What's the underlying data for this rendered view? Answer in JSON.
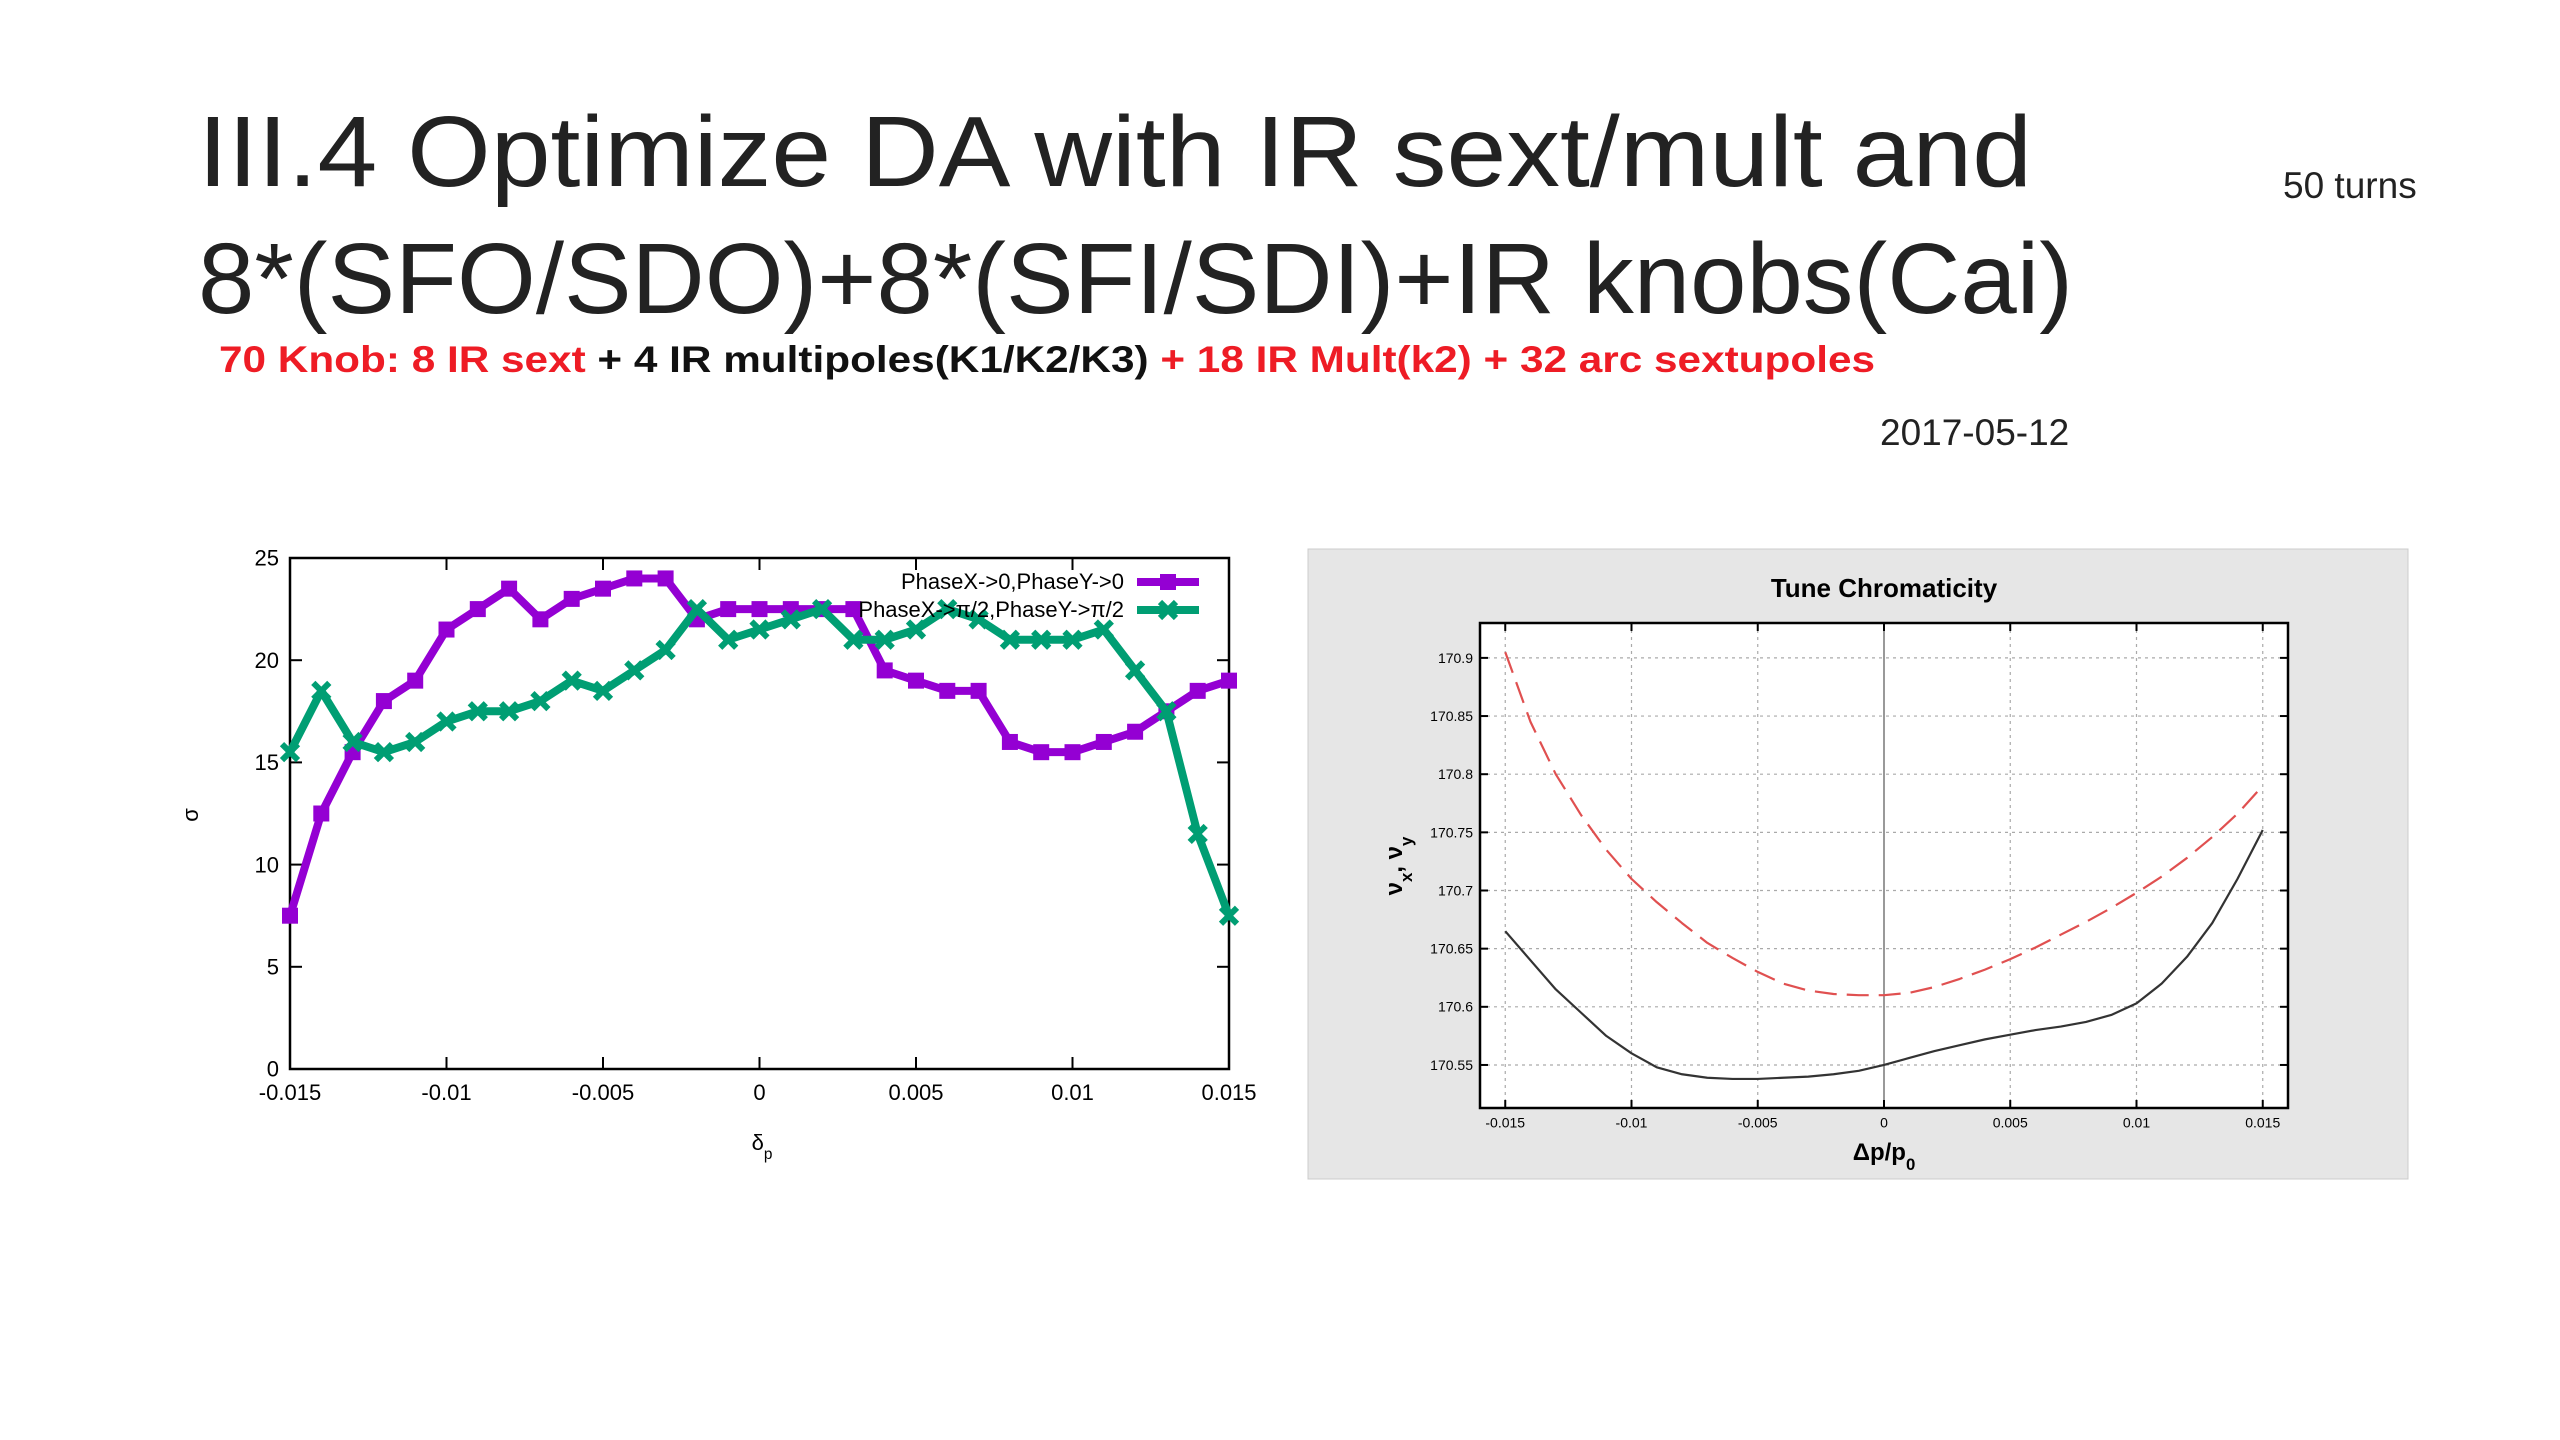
{
  "slide": {
    "title_lines": [
      "III.4 Optimize DA with IR sext/mult and",
      "8*(SFO/SDO)+8*(SFI/SDI)+IR knobs(Cai)"
    ],
    "note": "50 turns",
    "subtitle": [
      {
        "text": "70 Knob: 8 IR sext",
        "color": "#ee1c25"
      },
      {
        "text": " + 4 IR multipoles(K1/K2/K3)",
        "color": "#111111"
      },
      {
        "text": " + 18 IR Mult(k2) + 32 arc sextupoles",
        "color": "#ee1c25"
      }
    ],
    "date": "2017-05-12"
  },
  "chart_data": [
    {
      "type": "line",
      "xlabel": [
        {
          "text": "δ"
        },
        {
          "text": "p",
          "sub": true
        }
      ],
      "ylabel": [
        {
          "text": "σ"
        }
      ],
      "x": [
        -0.015,
        -0.014,
        -0.013,
        -0.012,
        -0.011,
        -0.01,
        -0.009,
        -0.008,
        -0.007,
        -0.006,
        -0.005,
        -0.004,
        -0.003,
        -0.002,
        -0.001,
        0,
        0.001,
        0.002,
        0.003,
        0.004,
        0.005,
        0.006,
        0.007,
        0.008,
        0.009,
        0.01,
        0.011,
        0.012,
        0.013,
        0.014,
        0.015
      ],
      "series": [
        {
          "name": "PhaseX->0,PhaseY->0",
          "color": "#9400d3",
          "marker": "square",
          "values": [
            7.5,
            12.5,
            15.5,
            18,
            19,
            21.5,
            22.5,
            23.5,
            22,
            23,
            23.5,
            24,
            24,
            22,
            22.5,
            22.5,
            22.5,
            22.5,
            22.5,
            19.5,
            19,
            18.5,
            18.5,
            16,
            15.5,
            15.5,
            16,
            16.5,
            17.5,
            18.5,
            19
          ]
        },
        {
          "name": "PhaseX->π/2,PhaseY->π/2",
          "color": "#009e73",
          "marker": "cross",
          "values": [
            15.5,
            18.5,
            16,
            15.5,
            16,
            17,
            17.5,
            17.5,
            18,
            19,
            18.5,
            19.5,
            20.5,
            22.5,
            21,
            21.5,
            22,
            22.5,
            21,
            21,
            21.5,
            22.5,
            22,
            21,
            21,
            21,
            21.5,
            19.5,
            17.5,
            11.5,
            7.5
          ]
        }
      ],
      "xlim": [
        -0.015,
        0.015
      ],
      "xticks": [
        -0.015,
        -0.01,
        -0.005,
        0,
        0.005,
        0.01,
        0.015
      ],
      "ylim": [
        0,
        25
      ],
      "yticks": [
        0,
        5,
        10,
        15,
        20,
        25
      ],
      "grid": false,
      "legend": "top-right"
    },
    {
      "type": "line",
      "title": "Tune Chromaticity",
      "xlabel": [
        {
          "text": "Δp/p"
        },
        {
          "text": "0",
          "sub": true
        }
      ],
      "ylabel": [
        {
          "text": "ν"
        },
        {
          "text": "x",
          "sub": true
        },
        {
          "text": ", ν"
        },
        {
          "text": "y",
          "sub": true
        }
      ],
      "x": [
        -0.015,
        -0.014,
        -0.013,
        -0.012,
        -0.011,
        -0.01,
        -0.009,
        -0.008,
        -0.007,
        -0.006,
        -0.005,
        -0.004,
        -0.003,
        -0.002,
        -0.001,
        0,
        0.001,
        0.002,
        0.003,
        0.004,
        0.005,
        0.006,
        0.007,
        0.008,
        0.009,
        0.01,
        0.011,
        0.012,
        0.013,
        0.014,
        0.015
      ],
      "series": [
        {
          "color": "#e05050",
          "dashed": true,
          "values": [
            170.905,
            170.845,
            170.8,
            170.765,
            170.735,
            170.71,
            170.69,
            170.672,
            170.655,
            170.642,
            170.63,
            170.62,
            170.614,
            170.611,
            170.61,
            170.61,
            170.612,
            170.617,
            170.624,
            170.632,
            170.641,
            170.651,
            170.662,
            170.673,
            170.685,
            170.698,
            170.712,
            170.728,
            170.746,
            170.766,
            170.79
          ]
        },
        {
          "color": "#333333",
          "dashed": false,
          "values": [
            170.665,
            170.64,
            170.615,
            170.595,
            170.575,
            170.56,
            170.548,
            170.542,
            170.539,
            170.538,
            170.538,
            170.539,
            170.54,
            170.542,
            170.545,
            170.55,
            170.556,
            170.562,
            170.567,
            170.572,
            170.576,
            170.58,
            170.583,
            170.587,
            170.593,
            170.603,
            170.62,
            170.643,
            170.672,
            170.71,
            170.752
          ]
        }
      ],
      "xlim": [
        -0.016,
        0.016
      ],
      "xticks": [
        -0.015,
        -0.01,
        -0.005,
        0,
        0.005,
        0.01,
        0.015
      ],
      "ylim": [
        170.513,
        170.93
      ],
      "yticks": [
        170.55,
        170.6,
        170.65,
        170.7,
        170.75,
        170.8,
        170.85,
        170.9
      ],
      "grid": true
    }
  ]
}
